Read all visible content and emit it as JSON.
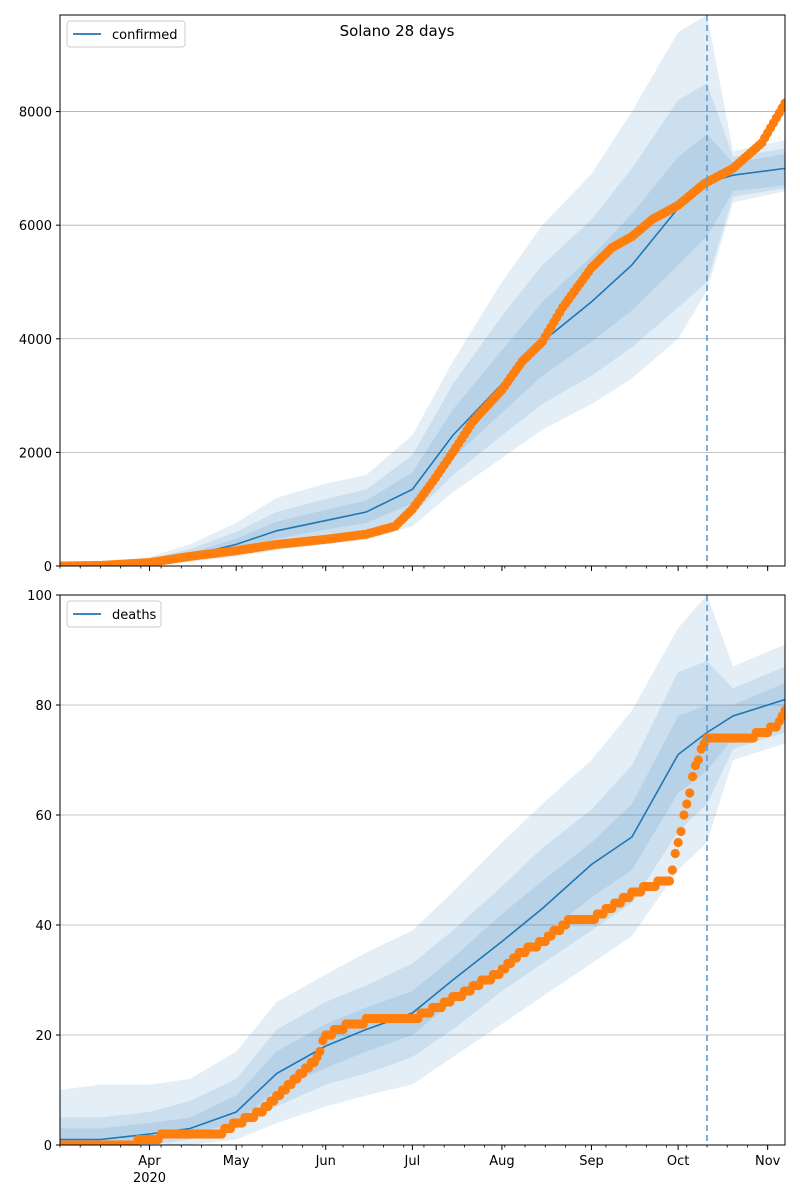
{
  "chart_data": [
    {
      "type": "line",
      "title": "Solano 28 days",
      "legend": {
        "label": "confirmed",
        "position": "top-left"
      },
      "grid": "y-major",
      "ylim": [
        0,
        9700
      ],
      "yticks": [
        0,
        2000,
        4000,
        6000,
        8000
      ],
      "xlim": [
        "2020-03-01",
        "2020-11-07"
      ],
      "forecast_start": "2020-10-11",
      "model": {
        "name": "confirmed",
        "x": [
          "2020-03-01",
          "2020-03-15",
          "2020-04-01",
          "2020-04-15",
          "2020-05-01",
          "2020-05-15",
          "2020-06-01",
          "2020-06-15",
          "2020-07-01",
          "2020-07-15",
          "2020-08-01",
          "2020-08-15",
          "2020-09-01",
          "2020-09-15",
          "2020-10-01",
          "2020-10-11",
          "2020-10-20",
          "2020-11-07"
        ],
        "mean": [
          0,
          15,
          70,
          180,
          380,
          620,
          800,
          950,
          1350,
          2300,
          3200,
          3950,
          4650,
          5300,
          6300,
          6750,
          6880,
          7000
        ],
        "band1": [
          [
            0,
            0
          ],
          [
            10,
            20
          ],
          [
            50,
            90
          ],
          [
            140,
            230
          ],
          [
            300,
            480
          ],
          [
            480,
            780
          ],
          [
            640,
            990
          ],
          [
            760,
            1150
          ],
          [
            1100,
            1650
          ],
          [
            1900,
            2750
          ],
          [
            2700,
            3800
          ],
          [
            3350,
            4650
          ],
          [
            3950,
            5450
          ],
          [
            4500,
            6200
          ],
          [
            5300,
            7200
          ],
          [
            5800,
            7600
          ],
          [
            6600,
            7100
          ],
          [
            6700,
            7250
          ]
        ],
        "band2": [
          [
            0,
            0
          ],
          [
            5,
            30
          ],
          [
            30,
            120
          ],
          [
            100,
            300
          ],
          [
            220,
            600
          ],
          [
            370,
            950
          ],
          [
            500,
            1180
          ],
          [
            600,
            1350
          ],
          [
            900,
            1950
          ],
          [
            1600,
            3200
          ],
          [
            2300,
            4400
          ],
          [
            2850,
            5300
          ],
          [
            3350,
            6100
          ],
          [
            3850,
            7000
          ],
          [
            4550,
            8200
          ],
          [
            5000,
            8500
          ],
          [
            6500,
            7200
          ],
          [
            6650,
            7350
          ]
        ],
        "band3": [
          [
            0,
            0
          ],
          [
            2,
            40
          ],
          [
            20,
            160
          ],
          [
            70,
            380
          ],
          [
            160,
            760
          ],
          [
            280,
            1200
          ],
          [
            380,
            1450
          ],
          [
            460,
            1600
          ],
          [
            700,
            2300
          ],
          [
            1300,
            3600
          ],
          [
            1900,
            5000
          ],
          [
            2400,
            6000
          ],
          [
            2850,
            6900
          ],
          [
            3300,
            8000
          ],
          [
            4000,
            9400
          ],
          [
            4850,
            9700
          ],
          [
            6400,
            7300
          ],
          [
            6600,
            7500
          ]
        ]
      },
      "observed": {
        "name": "observed",
        "x": [
          "2020-03-01",
          "2020-03-15",
          "2020-04-01",
          "2020-04-15",
          "2020-05-01",
          "2020-05-15",
          "2020-06-01",
          "2020-06-15",
          "2020-06-25",
          "2020-07-01",
          "2020-07-08",
          "2020-07-15",
          "2020-07-22",
          "2020-08-01",
          "2020-08-08",
          "2020-08-15",
          "2020-08-22",
          "2020-09-01",
          "2020-09-08",
          "2020-09-15",
          "2020-09-22",
          "2020-10-01",
          "2020-10-10",
          "2020-10-20",
          "2020-10-30",
          "2020-11-07"
        ],
        "y": [
          0,
          10,
          60,
          170,
          270,
          380,
          470,
          560,
          700,
          1000,
          1480,
          2000,
          2550,
          3100,
          3600,
          3950,
          4550,
          5250,
          5600,
          5800,
          6100,
          6350,
          6730,
          7000,
          7450,
          8150
        ]
      }
    },
    {
      "type": "line",
      "legend": {
        "label": "deaths",
        "position": "top-left"
      },
      "grid": "y-major",
      "ylim": [
        0,
        100
      ],
      "yticks": [
        0,
        20,
        40,
        60,
        80,
        100
      ],
      "xticks": [
        "Apr",
        "May",
        "Jun",
        "Jul",
        "Aug",
        "Sep",
        "Oct",
        "Nov"
      ],
      "xtick_year": "2020",
      "xlim": [
        "2020-03-01",
        "2020-11-07"
      ],
      "forecast_start": "2020-10-11",
      "model": {
        "name": "deaths",
        "x": [
          "2020-03-01",
          "2020-03-15",
          "2020-04-01",
          "2020-04-15",
          "2020-05-01",
          "2020-05-15",
          "2020-06-01",
          "2020-06-15",
          "2020-07-01",
          "2020-07-15",
          "2020-08-01",
          "2020-08-15",
          "2020-09-01",
          "2020-09-15",
          "2020-10-01",
          "2020-10-11",
          "2020-10-20",
          "2020-11-07"
        ],
        "mean": [
          1,
          1,
          2,
          3,
          6,
          13,
          18,
          21,
          24,
          30,
          37,
          43,
          51,
          56,
          71,
          75,
          78,
          81
        ],
        "band1": [
          [
            0,
            3
          ],
          [
            0,
            3
          ],
          [
            1,
            4
          ],
          [
            2,
            5
          ],
          [
            4,
            9
          ],
          [
            10,
            17
          ],
          [
            14,
            22
          ],
          [
            17,
            25
          ],
          [
            20,
            28
          ],
          [
            26,
            34
          ],
          [
            33,
            42
          ],
          [
            38,
            48
          ],
          [
            45,
            55
          ],
          [
            50,
            62
          ],
          [
            64,
            78
          ],
          [
            68,
            80
          ],
          [
            74,
            80
          ],
          [
            77,
            84
          ]
        ],
        "band2": [
          [
            0,
            5
          ],
          [
            0,
            5
          ],
          [
            0,
            6
          ],
          [
            1,
            8
          ],
          [
            3,
            12
          ],
          [
            7,
            21
          ],
          [
            11,
            26
          ],
          [
            13,
            29
          ],
          [
            16,
            33
          ],
          [
            21,
            39
          ],
          [
            28,
            47
          ],
          [
            33,
            54
          ],
          [
            39,
            61
          ],
          [
            44,
            69
          ],
          [
            57,
            86
          ],
          [
            62,
            88
          ],
          [
            72,
            83
          ],
          [
            75,
            87
          ]
        ],
        "band3": [
          [
            0,
            10
          ],
          [
            0,
            11
          ],
          [
            0,
            11
          ],
          [
            0,
            12
          ],
          [
            1,
            17
          ],
          [
            4,
            26
          ],
          [
            7,
            31
          ],
          [
            9,
            35
          ],
          [
            11,
            39
          ],
          [
            16,
            46
          ],
          [
            22,
            55
          ],
          [
            27,
            62
          ],
          [
            33,
            70
          ],
          [
            38,
            79
          ],
          [
            50,
            94
          ],
          [
            55,
            100
          ],
          [
            70,
            87
          ],
          [
            73,
            91
          ]
        ]
      },
      "observed": {
        "name": "observed",
        "x": [
          "2020-03-01",
          "2020-03-25",
          "2020-03-31",
          "2020-04-10",
          "2020-04-25",
          "2020-05-01",
          "2020-05-10",
          "2020-05-20",
          "2020-05-29",
          "2020-06-01",
          "2020-06-10",
          "2020-06-20",
          "2020-06-28",
          "2020-07-01",
          "2020-07-10",
          "2020-07-20",
          "2020-07-30",
          "2020-08-08",
          "2020-08-15",
          "2020-08-25",
          "2020-09-01",
          "2020-09-10",
          "2020-09-20",
          "2020-09-28",
          "2020-10-01",
          "2020-10-07",
          "2020-10-11",
          "2020-10-25",
          "2020-11-04",
          "2020-11-07"
        ],
        "y": [
          0,
          0,
          1,
          2,
          2,
          4,
          6,
          11,
          16,
          20,
          22,
          23,
          23,
          23,
          25,
          28,
          31,
          35,
          37,
          41,
          41,
          44,
          47,
          48,
          55,
          69,
          74,
          74,
          76,
          79
        ]
      }
    }
  ]
}
